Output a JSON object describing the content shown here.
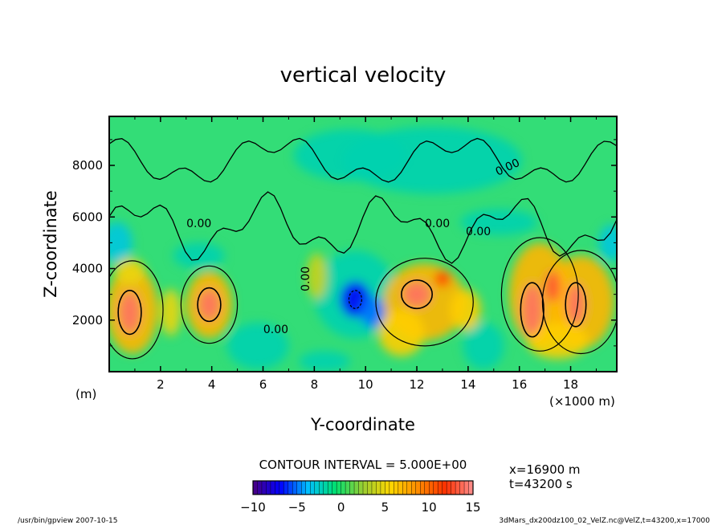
{
  "title": "vertical velocity",
  "chart_data": {
    "type": "heatmap",
    "title": "vertical velocity",
    "xlabel": "Y-coordinate",
    "ylabel": "Z-coordinate",
    "x_unit_note": "(×1000 m)",
    "y_unit_note": "(m)",
    "xlim": [
      0,
      19.8
    ],
    "ylim": [
      0,
      9900
    ],
    "x_ticks": [
      2,
      4,
      6,
      8,
      10,
      12,
      14,
      16,
      18
    ],
    "y_ticks": [
      2000,
      4000,
      6000,
      8000
    ],
    "contour_labels": [
      "0.00",
      "0.00",
      "0.00",
      "0.00",
      "0.00",
      "0.00"
    ],
    "colorbar": {
      "min": -10,
      "max": 15,
      "tick_values": [
        -10,
        -5,
        0,
        5,
        10,
        15
      ],
      "tick_labels": [
        "−10",
        "−5",
        "0",
        "5",
        "10",
        "15"
      ],
      "colors": [
        "#4b0082",
        "#0000ff",
        "#00bfff",
        "#00e070",
        "#9acd32",
        "#ffd700",
        "#ff8c00",
        "#ff3000",
        "#ff9090"
      ]
    },
    "updraft_cores": [
      {
        "y_km": 0.8,
        "z_m": 2300,
        "w_max_approx": 15
      },
      {
        "y_km": 3.9,
        "z_m": 2600,
        "w_max_approx": 15
      },
      {
        "y_km": 12.1,
        "z_m": 3000,
        "w_max_approx": 15
      },
      {
        "y_km": 16.5,
        "z_m": 2400,
        "w_max_approx": 15
      },
      {
        "y_km": 18.3,
        "z_m": 2600,
        "w_max_approx": 15
      }
    ],
    "downdraft_cores": [
      {
        "y_km": 9.6,
        "z_m": 2800,
        "w_min_approx": -7
      }
    ]
  },
  "contour_interval": "CONTOUR INTERVAL = 5.000E+00",
  "info": {
    "x_position": "x=16900  m",
    "time": "t=43200  s"
  },
  "footer": {
    "left": "/usr/bin/gpview   2007-10-15",
    "right": "3dMars_dx200dz100_02_VelZ.nc@VelZ,t=43200,x=17000"
  }
}
